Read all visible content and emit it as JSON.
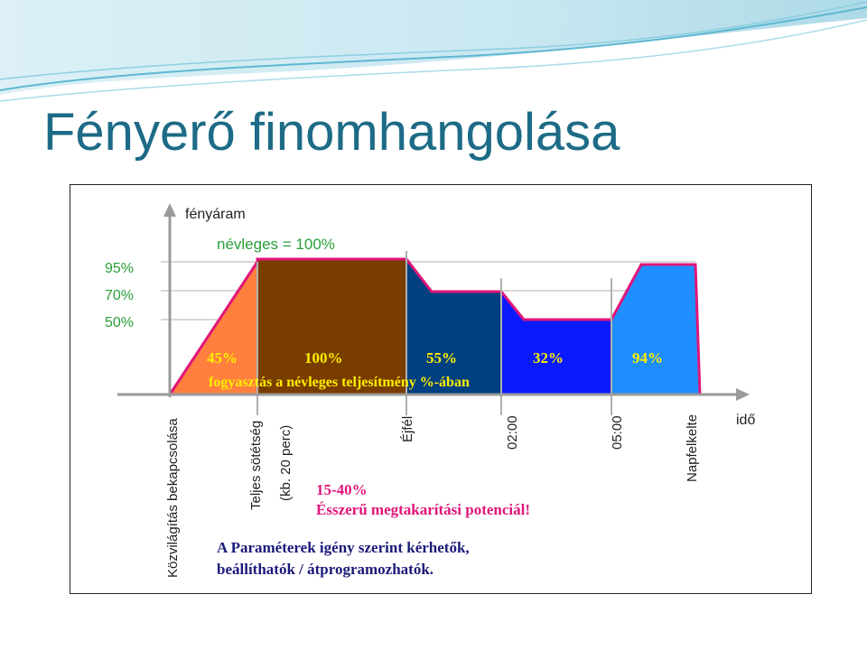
{
  "slide": {
    "title": "Fényerő finomhangolása"
  },
  "chart_data": {
    "type": "area",
    "ylabel": "fényáram",
    "xlabel": "idő",
    "nominal_label": "névleges = 100%",
    "y_ticks": [
      "95%",
      "70%",
      "50%"
    ],
    "x_ticks": [
      "Közvilágítás bekapcsolása",
      "Teljes sötétség",
      "(kb. 20 perc)",
      "Éjfél",
      "02:00",
      "05:00",
      "Napfelkelte"
    ],
    "segments": [
      {
        "label": "45%",
        "color": "#ff7f3f"
      },
      {
        "label": "100%",
        "color": "#7a3d00"
      },
      {
        "label": "55%",
        "color": "#003f80"
      },
      {
        "label": "32%",
        "color": "#0a1aff"
      },
      {
        "label": "94%",
        "color": "#1f8fff"
      }
    ],
    "consumption_caption": "fogyasztás a névleges teljesítmény %-ában",
    "savings": {
      "line1": "15-40%",
      "line2": "Ésszerű megtakarítási potenciál!"
    },
    "note": {
      "line1": "A Paraméterek igény szerint kérhetők,",
      "line2": "beállíthatók / átprogramozhatók."
    }
  }
}
